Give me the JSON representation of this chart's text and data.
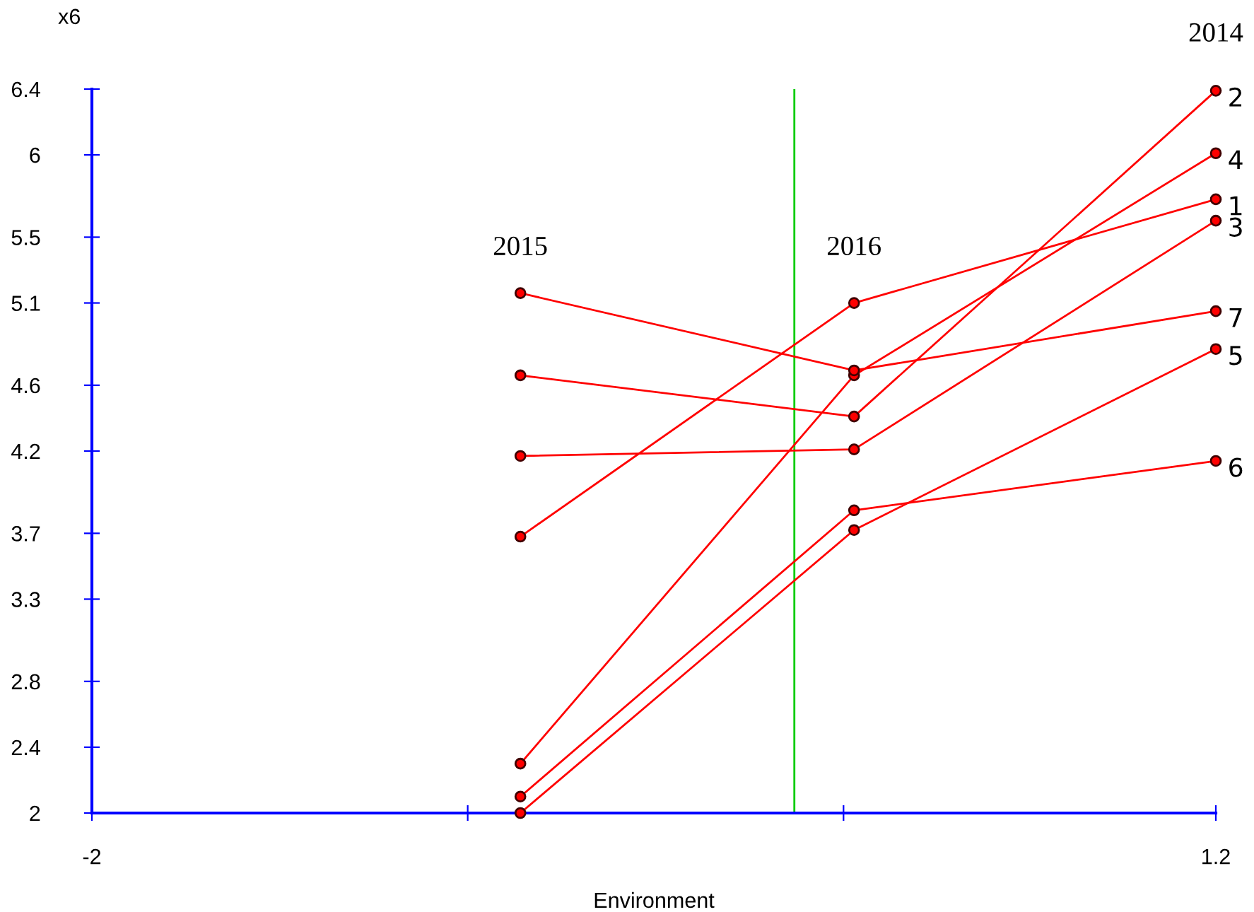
{
  "chart_data": {
    "type": "line",
    "xlabel": "Environment",
    "ylabel": "x6",
    "x": [
      -0.78,
      0.17,
      1.2
    ],
    "series": [
      {
        "name": "1",
        "color": "#ff0000",
        "values": [
          3.68,
          5.1,
          5.73
        ]
      },
      {
        "name": "2",
        "color": "#ff0000",
        "values": [
          4.66,
          4.41,
          6.39
        ]
      },
      {
        "name": "3",
        "color": "#ff0000",
        "values": [
          4.17,
          4.21,
          5.6
        ]
      },
      {
        "name": "4",
        "color": "#ff0000",
        "values": [
          2.3,
          4.66,
          6.01
        ]
      },
      {
        "name": "5",
        "color": "#ff0000",
        "values": [
          2.0,
          3.72,
          4.82
        ]
      },
      {
        "name": "6",
        "color": "#ff0000",
        "values": [
          2.1,
          3.84,
          4.14
        ]
      },
      {
        "name": "7",
        "color": "#ff0000",
        "values": [
          5.16,
          4.69,
          5.05
        ]
      }
    ],
    "annotations": [
      "2015",
      "2016",
      "2014"
    ],
    "ref_lines": [
      {
        "axis": "x",
        "value": 0,
        "color": "#00cc00"
      }
    ],
    "xlim": [
      -2,
      1.2
    ],
    "xticks": [
      -2,
      {
        "value": -0.93,
        "label": null
      },
      {
        "value": 0.14,
        "label": null
      },
      1.2
    ],
    "ylim": [
      2,
      6.4
    ],
    "yticks": [
      2,
      2.4,
      2.8,
      3.3,
      3.7,
      4.2,
      4.6,
      5.1,
      5.5,
      6,
      6.4
    ],
    "grid": false,
    "legend": false,
    "marker": "circle",
    "line_style": "solid"
  }
}
